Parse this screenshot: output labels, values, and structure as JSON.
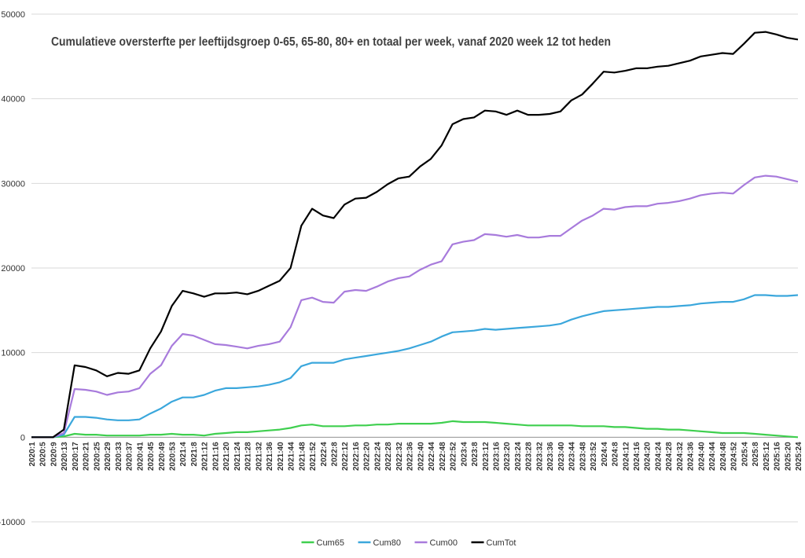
{
  "chart_data": {
    "type": "line",
    "title": "Cumulatieve oversterfte per leeftijdsgroep 0-65, 65-80, 80+ en totaal per week, vanaf 2020 week 12 tot heden",
    "categories": [
      "2020:1",
      "2020:5",
      "2020:9",
      "2020:13",
      "2020:17",
      "2020:21",
      "2020:25",
      "2020:29",
      "2020:33",
      "2020:37",
      "2020:41",
      "2020:45",
      "2020:49",
      "2020:53",
      "2021:4",
      "2021:8",
      "2021:12",
      "2021:16",
      "2021:20",
      "2021:24",
      "2021:28",
      "2021:32",
      "2021:36",
      "2021:40",
      "2021:44",
      "2021:48",
      "2021:52",
      "2022:4",
      "2022:8",
      "2022:12",
      "2022:16",
      "2022:20",
      "2022:24",
      "2022:28",
      "2022:32",
      "2022:36",
      "2022:40",
      "2022:44",
      "2022:48",
      "2022:52",
      "2023:4",
      "2023:8",
      "2023:12",
      "2023:16",
      "2023:20",
      "2023:24",
      "2023:28",
      "2023:32",
      "2023:36",
      "2023:40",
      "2023:44",
      "2023:48",
      "2023:52",
      "2024:4",
      "2024:8",
      "2024:12",
      "2024:16",
      "2024:20",
      "2024:24",
      "2024:28",
      "2024:32",
      "2024:36",
      "2024:40",
      "2024:44",
      "2024:48",
      "2024:52",
      "2025:4",
      "2025:8",
      "2025:12",
      "2025:16",
      "2025:20",
      "2025:24"
    ],
    "series": [
      {
        "name": "Cum65",
        "color": "#3fcf4f",
        "values": [
          0,
          0,
          0,
          100,
          400,
          300,
          300,
          200,
          200,
          200,
          200,
          300,
          300,
          400,
          300,
          300,
          200,
          400,
          500,
          600,
          600,
          700,
          800,
          900,
          1100,
          1400,
          1500,
          1300,
          1300,
          1300,
          1400,
          1400,
          1500,
          1500,
          1600,
          1600,
          1600,
          1600,
          1700,
          1900,
          1800,
          1800,
          1800,
          1700,
          1600,
          1500,
          1400,
          1400,
          1400,
          1400,
          1400,
          1300,
          1300,
          1300,
          1200,
          1200,
          1100,
          1000,
          1000,
          900,
          900,
          800,
          700,
          600,
          500,
          500,
          500,
          400,
          300,
          200,
          100,
          0
        ]
      },
      {
        "name": "Cum80",
        "color": "#3ba7dc",
        "values": [
          0,
          0,
          0,
          300,
          2400,
          2400,
          2300,
          2100,
          2000,
          2000,
          2100,
          2800,
          3400,
          4200,
          4700,
          4700,
          5000,
          5500,
          5800,
          5800,
          5900,
          6000,
          6200,
          6500,
          7000,
          8400,
          8800,
          8800,
          8800,
          9200,
          9400,
          9600,
          9800,
          10000,
          10200,
          10500,
          10900,
          11300,
          11900,
          12400,
          12500,
          12600,
          12800,
          12700,
          12800,
          12900,
          13000,
          13100,
          13200,
          13400,
          13900,
          14300,
          14600,
          14900,
          15000,
          15100,
          15200,
          15300,
          15400,
          15400,
          15500,
          15600,
          15800,
          15900,
          16000,
          16000,
          16300,
          16800,
          16800,
          16700,
          16700,
          16800
        ]
      },
      {
        "name": "Cum00",
        "color": "#a87bdc",
        "values": [
          0,
          0,
          0,
          500,
          5700,
          5600,
          5400,
          5000,
          5300,
          5400,
          5800,
          7500,
          8500,
          10800,
          12200,
          12000,
          11500,
          11000,
          10900,
          10700,
          10500,
          10800,
          11000,
          11300,
          13000,
          16200,
          16500,
          16000,
          15900,
          17200,
          17400,
          17300,
          17800,
          18400,
          18800,
          19000,
          19800,
          20400,
          20800,
          22800,
          23100,
          23300,
          24000,
          23900,
          23700,
          23900,
          23600,
          23600,
          23800,
          23800,
          24700,
          25600,
          26200,
          27000,
          26900,
          27200,
          27300,
          27300,
          27600,
          27700,
          27900,
          28200,
          28600,
          28800,
          28900,
          28800,
          29800,
          30700,
          30900,
          30800,
          30500,
          30200
        ]
      },
      {
        "name": "CumTot",
        "color": "#000000",
        "values": [
          0,
          0,
          0,
          900,
          8500,
          8300,
          7900,
          7200,
          7600,
          7500,
          7900,
          10500,
          12500,
          15500,
          17300,
          17000,
          16600,
          17000,
          17000,
          17100,
          16900,
          17300,
          17900,
          18500,
          20000,
          25000,
          27000,
          26200,
          25900,
          27500,
          28200,
          28300,
          29000,
          29900,
          30600,
          30800,
          32000,
          32900,
          34500,
          37000,
          37600,
          37800,
          38600,
          38500,
          38100,
          38600,
          38100,
          38100,
          38200,
          38500,
          39800,
          40500,
          41800,
          43200,
          43100,
          43300,
          43600,
          43600,
          43800,
          43900,
          44200,
          44500,
          45000,
          45200,
          45400,
          45300,
          46500,
          47800,
          47900,
          47600,
          47200,
          47000
        ]
      }
    ],
    "ylim": [
      -10000,
      50000
    ],
    "yticks": [
      -10000,
      0,
      10000,
      20000,
      30000,
      40000,
      50000
    ],
    "grid": true,
    "legend": "bottom"
  }
}
